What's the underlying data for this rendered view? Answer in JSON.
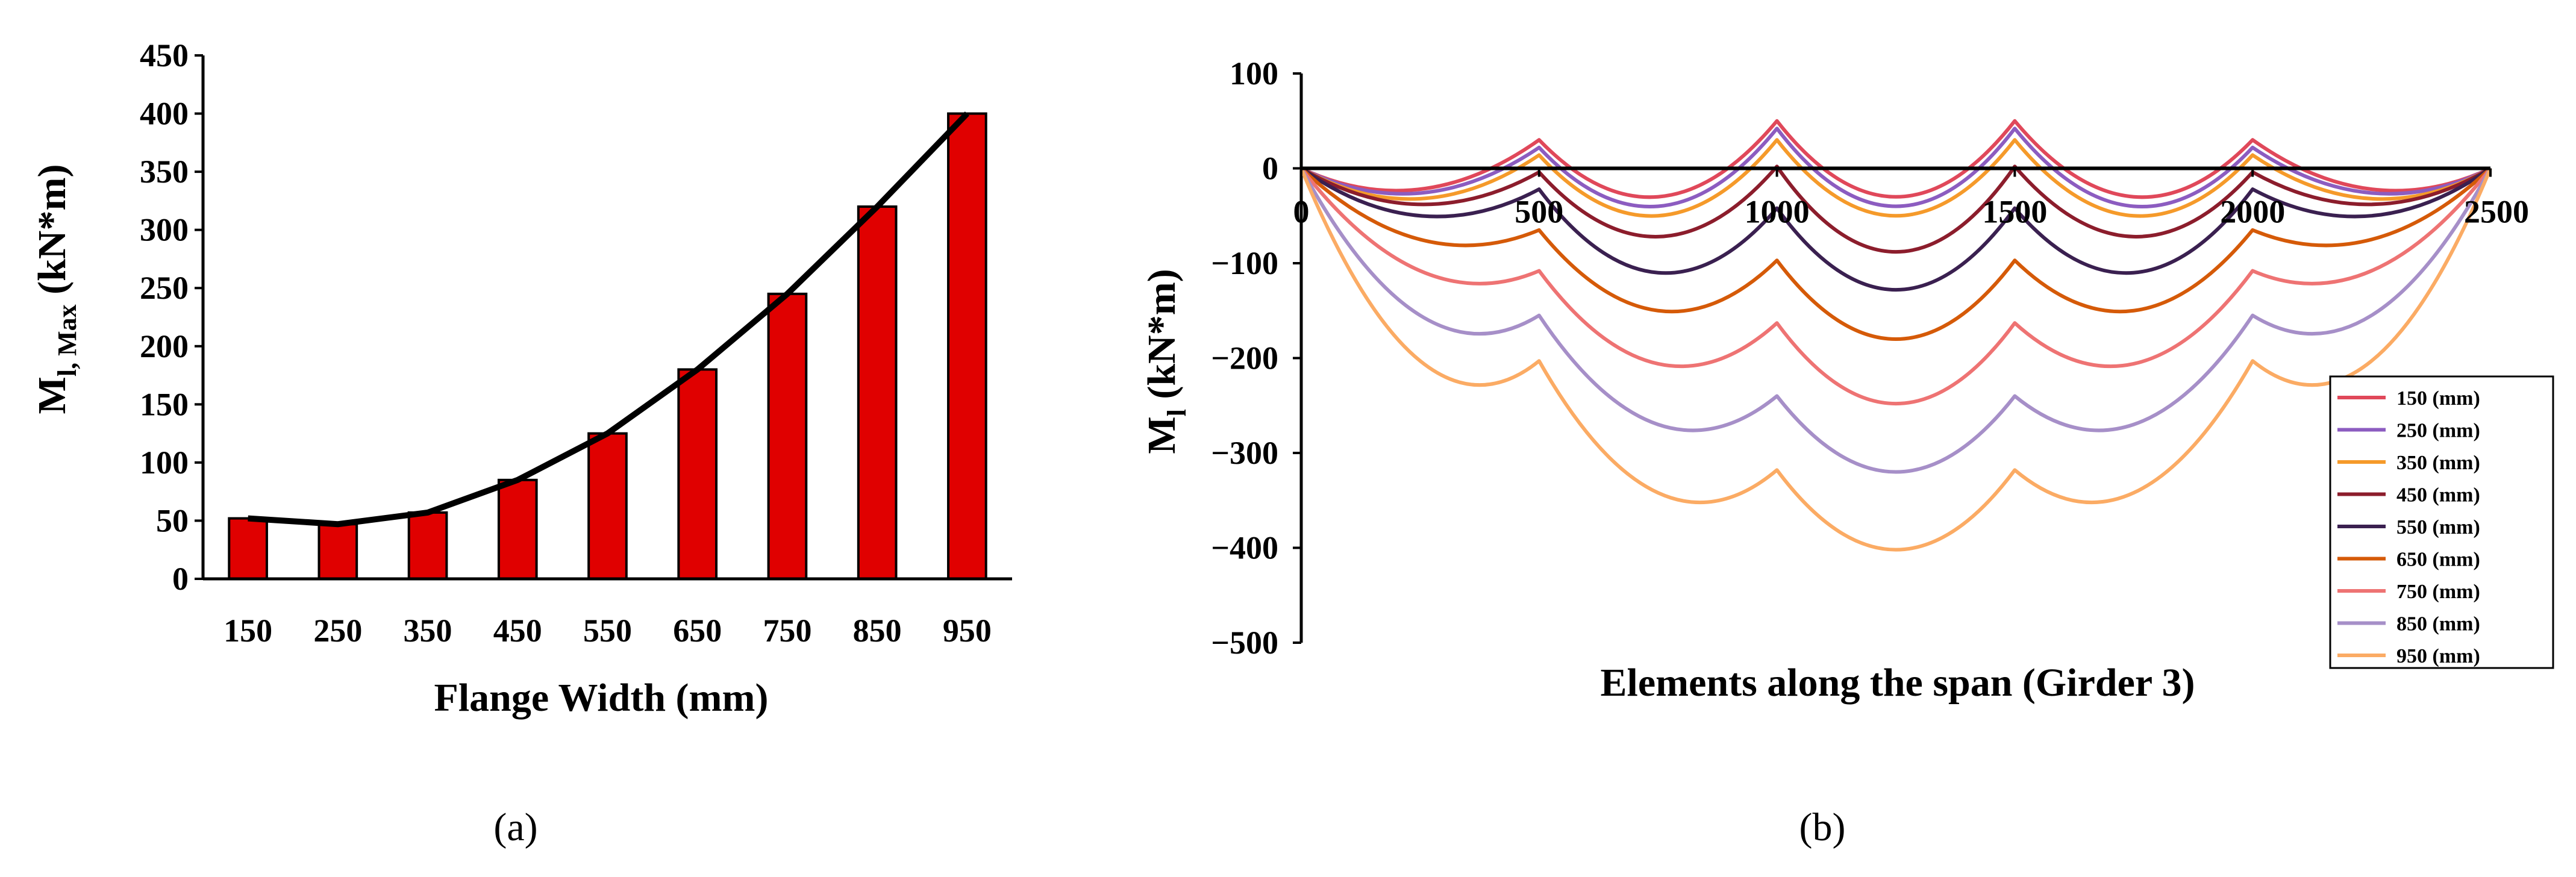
{
  "chart_data": [
    {
      "type": "bar",
      "panel_label": "(a)",
      "xlabel": "Flange Width (mm)",
      "ylabel_main": "M",
      "ylabel_sub": "l, Max",
      "ylabel_unit": " (kN*m)",
      "ylim": [
        0,
        450
      ],
      "y_ticks": [
        "0",
        "50",
        "100",
        "150",
        "200",
        "250",
        "300",
        "350",
        "400",
        "450"
      ],
      "categories": [
        "150",
        "250",
        "350",
        "450",
        "550",
        "650",
        "750",
        "850",
        "950"
      ],
      "values": [
        52,
        47,
        57,
        85,
        125,
        180,
        245,
        320,
        400
      ],
      "trend_values": [
        52,
        47,
        57,
        85,
        125,
        180,
        245,
        320,
        400
      ],
      "bar_color": "#e00000",
      "trend_color": "#000000",
      "grid": false
    },
    {
      "type": "line",
      "panel_label": "(b)",
      "xlabel": "Elements along the span (Girder 3)",
      "ylabel_main": "M",
      "ylabel_sub": "l",
      "ylabel_unit": " (kN*m)",
      "xlim": [
        0,
        2500
      ],
      "ylim": [
        -500,
        100
      ],
      "x_ticks": [
        "0",
        "500",
        "1000",
        "1500",
        "2000",
        "2500"
      ],
      "y_ticks": [
        "100",
        "0",
        "−100",
        "−200",
        "−300",
        "−400",
        "−500"
      ],
      "legend_position": "right",
      "series": [
        {
          "name": "150 (mm)",
          "color": "#e0485a",
          "values": [
            0,
            -22,
            30,
            -30,
            50,
            -30,
            50,
            -30,
            30,
            -22,
            0
          ]
        },
        {
          "name": "250 (mm)",
          "color": "#8c5cc0",
          "values": [
            0,
            -26,
            22,
            -40,
            42,
            -40,
            42,
            -40,
            22,
            -26,
            0
          ]
        },
        {
          "name": "350 (mm)",
          "color": "#f59a2a",
          "values": [
            0,
            -32,
            14,
            -50,
            30,
            -50,
            30,
            -50,
            14,
            -32,
            0
          ]
        },
        {
          "name": "450 (mm)",
          "color": "#8c1d2c",
          "values": [
            0,
            -38,
            -4,
            -72,
            2,
            -88,
            2,
            -72,
            -4,
            -38,
            0
          ]
        },
        {
          "name": "550 (mm)",
          "color": "#3a2050",
          "values": [
            0,
            -50,
            -22,
            -110,
            -42,
            -128,
            -42,
            -110,
            -22,
            -50,
            0
          ]
        },
        {
          "name": "650 (mm)",
          "color": "#d55a08",
          "values": [
            0,
            -75,
            -65,
            -150,
            -97,
            -180,
            -97,
            -150,
            -65,
            -75,
            0
          ]
        },
        {
          "name": "750 (mm)",
          "color": "#ee7373",
          "values": [
            0,
            -108,
            -108,
            -206,
            -163,
            -248,
            -163,
            -206,
            -108,
            -108,
            0
          ]
        },
        {
          "name": "850 (mm)",
          "color": "#a68fc8",
          "values": [
            0,
            -155,
            -155,
            -270,
            -240,
            -320,
            -240,
            -270,
            -155,
            -155,
            0
          ]
        },
        {
          "name": "950 (mm)",
          "color": "#fbab64",
          "values": [
            0,
            -203,
            -203,
            -342,
            -318,
            -402,
            -318,
            -342,
            -203,
            -203,
            0
          ]
        }
      ]
    }
  ]
}
